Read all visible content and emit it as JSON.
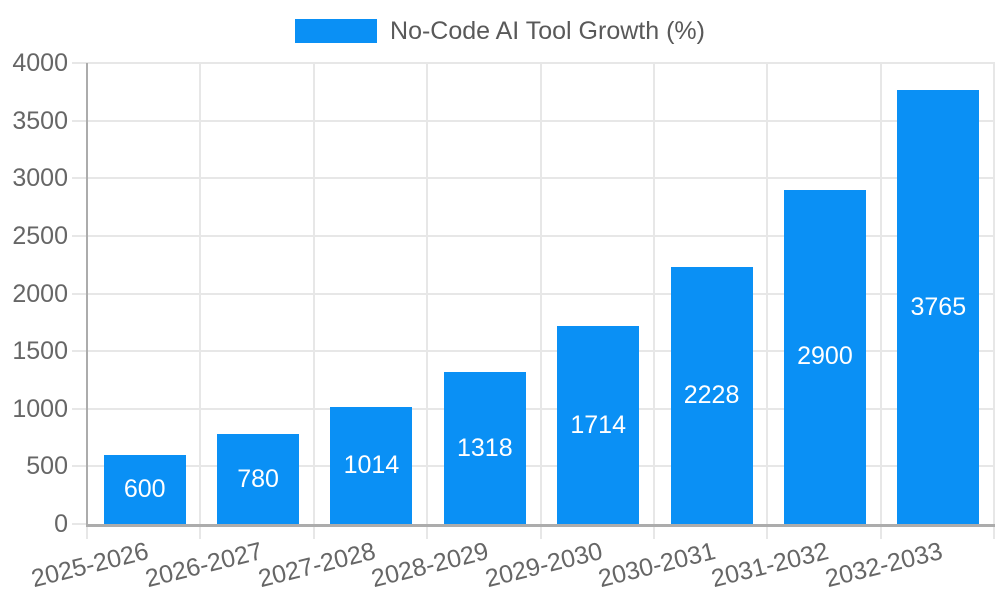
{
  "legend": {
    "label": "No-Code AI Tool Growth (%)"
  },
  "colors": {
    "bar": "#0A90F5",
    "grid": "#E7E7E7",
    "axis": "#ACACAC",
    "tick_label": "#666666",
    "legend_label": "#595959",
    "value_label": "#FFFFFF",
    "background": "#FFFFFF"
  },
  "chart_data": {
    "type": "bar",
    "title": "",
    "series_name": "No-Code AI Tool Growth (%)",
    "categories": [
      "2025-2026",
      "2026-2027",
      "2027-2028",
      "2028-2029",
      "2029-2030",
      "2030-2031",
      "2031-2032",
      "2032-2033"
    ],
    "values": [
      600,
      780,
      1014,
      1318,
      1714,
      2228,
      2900,
      3765
    ],
    "xlabel": "",
    "ylabel": "",
    "ylim": [
      0,
      4000
    ],
    "yticks": [
      0,
      500,
      1000,
      1500,
      2000,
      2500,
      3000,
      3500,
      4000
    ],
    "grid": true,
    "legend_position": "top-center",
    "value_labels_position": "inside-center",
    "x_label_rotation_deg": -14
  }
}
